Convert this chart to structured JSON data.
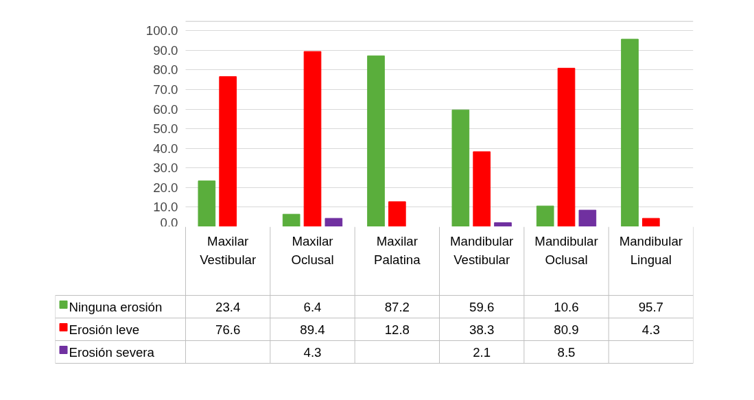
{
  "chart_data": {
    "type": "bar",
    "categories": [
      "Maxilar Vestibular",
      "Maxilar Oclusal",
      "Maxilar Palatina",
      "Mandibular Vestibular",
      "Mandibular Oclusal",
      "Mandibular Lingual"
    ],
    "series": [
      {
        "name": "Ninguna erosión",
        "color": "#5aae3c",
        "values": [
          23.4,
          6.4,
          87.2,
          59.6,
          10.6,
          95.7
        ]
      },
      {
        "name": "Erosión leve",
        "color": "#ff0000",
        "values": [
          76.6,
          89.4,
          12.8,
          38.3,
          80.9,
          4.3
        ]
      },
      {
        "name": "Erosión severa",
        "color": "#7030a0",
        "values": [
          null,
          4.3,
          null,
          2.1,
          8.5,
          null
        ]
      }
    ],
    "ylim": [
      0,
      105
    ],
    "yticks": [
      {
        "value": 0,
        "label": "0.0"
      },
      {
        "value": 10,
        "label": "10.0"
      },
      {
        "value": 20,
        "label": "20.0"
      },
      {
        "value": 30,
        "label": "30.0"
      },
      {
        "value": 40,
        "label": "40.0"
      },
      {
        "value": 50,
        "label": "50.0"
      },
      {
        "value": 60,
        "label": "60.0"
      },
      {
        "value": 70,
        "label": "70.0"
      },
      {
        "value": 80,
        "label": "80.0"
      },
      {
        "value": 90,
        "label": "90.0"
      },
      {
        "value": 100,
        "label": "100.0"
      }
    ],
    "grid": "y",
    "legend": "bottom",
    "data_labels": true
  }
}
